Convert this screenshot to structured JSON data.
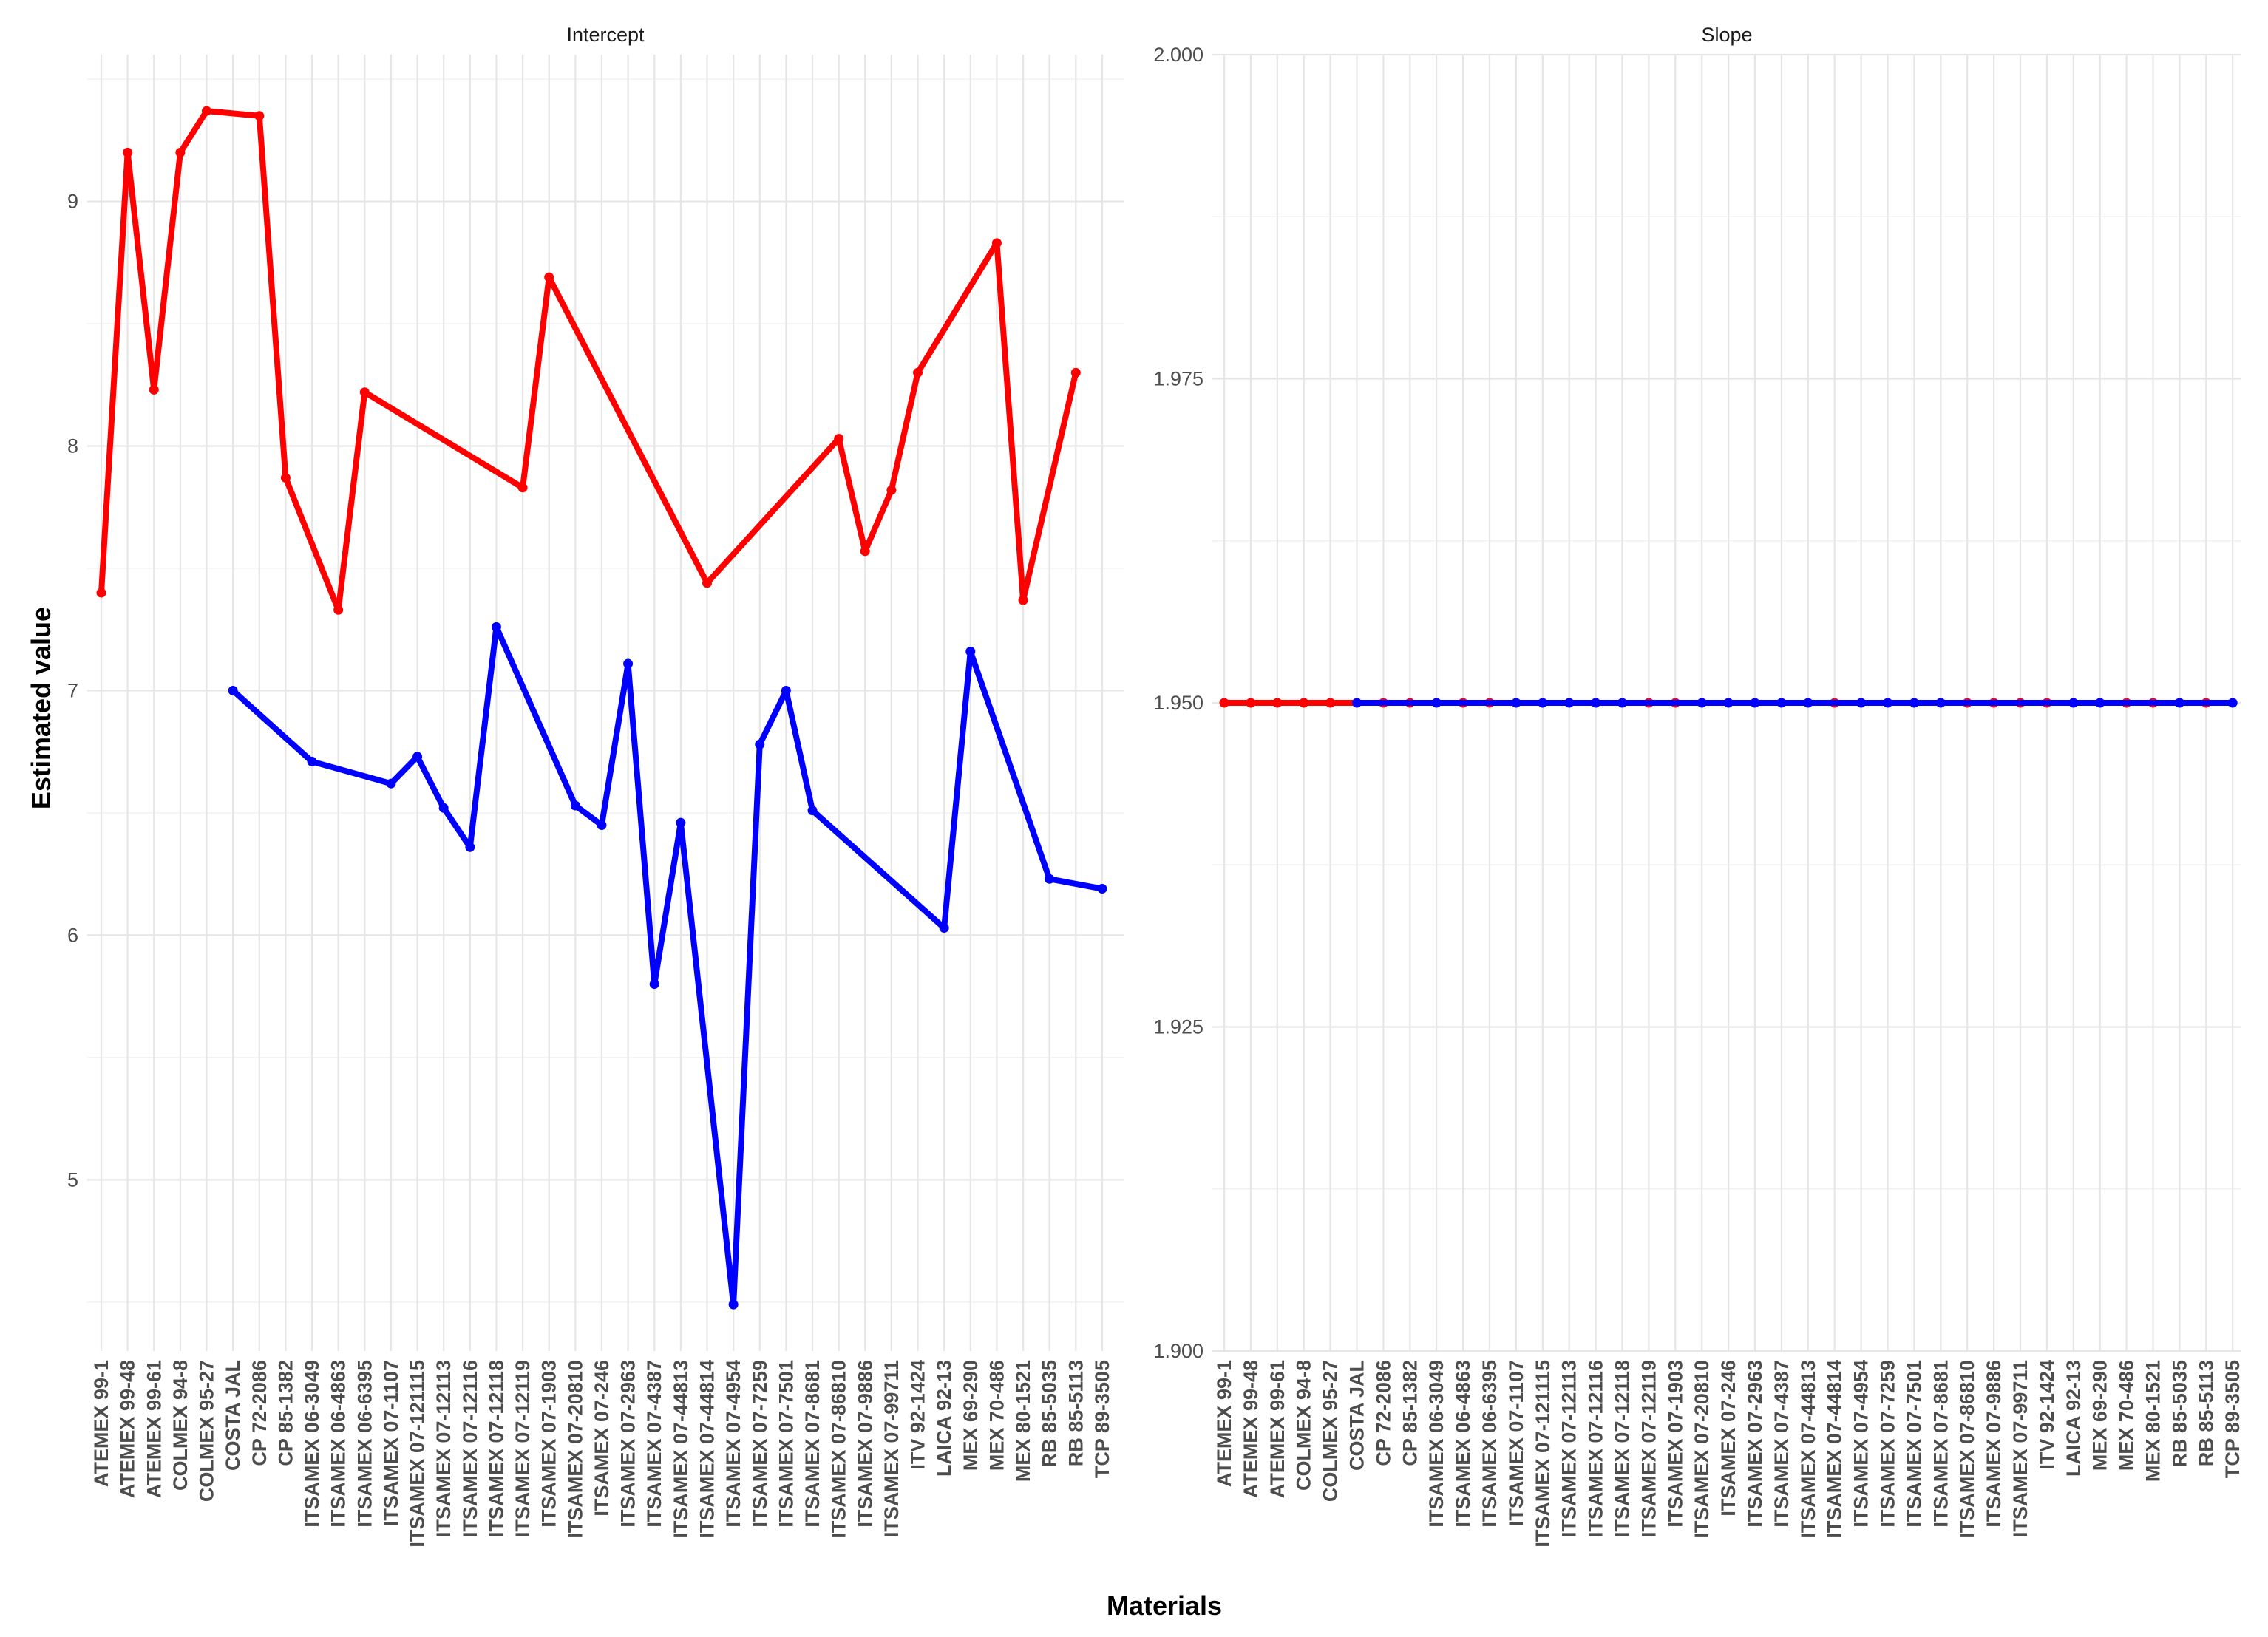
{
  "chart_data": {
    "type": "line",
    "xlabel": "Materials",
    "ylabel": "Estimated value",
    "grid": true,
    "legend": "none",
    "categories": [
      "ATEMEX 99-1",
      "ATEMEX 99-48",
      "ATEMEX 99-61",
      "COLMEX 94-8",
      "COLMEX 95-27",
      "COSTA JAL",
      "CP 72-2086",
      "CP 85-1382",
      "ITSAMEX 06-3049",
      "ITSAMEX 06-4863",
      "ITSAMEX 06-6395",
      "ITSAMEX 07-1107",
      "ITSAMEX 07-121115",
      "ITSAMEX 07-12113",
      "ITSAMEX 07-12116",
      "ITSAMEX 07-12118",
      "ITSAMEX 07-12119",
      "ITSAMEX 07-1903",
      "ITSAMEX 07-20810",
      "ITSAMEX 07-246",
      "ITSAMEX 07-2963",
      "ITSAMEX 07-4387",
      "ITSAMEX 07-44813",
      "ITSAMEX 07-44814",
      "ITSAMEX 07-4954",
      "ITSAMEX 07-7259",
      "ITSAMEX 07-7501",
      "ITSAMEX 07-8681",
      "ITSAMEX 07-86810",
      "ITSAMEX 07-9886",
      "ITSAMEX 07-99711",
      "ITV 92-1424",
      "LAICA 92-13",
      "MEX 69-290",
      "MEX 70-486",
      "MEX 80-1521",
      "RB 85-5035",
      "RB 85-5113",
      "TCP 89-3505"
    ],
    "panels": [
      {
        "title": "Intercept",
        "ylim": [
          4.3,
          9.6
        ],
        "yticks": [
          5,
          6,
          7,
          8,
          9
        ],
        "ytick_labels": [
          "5",
          "6",
          "7",
          "8",
          "9"
        ],
        "series": [
          {
            "color": "#ff0000",
            "values": [
              7.4,
              9.2,
              8.23,
              9.2,
              9.37,
              null,
              9.35,
              7.87,
              null,
              7.33,
              8.22,
              null,
              null,
              null,
              null,
              null,
              7.83,
              8.69,
              null,
              null,
              null,
              null,
              null,
              7.44,
              null,
              null,
              null,
              null,
              8.03,
              7.57,
              7.82,
              8.3,
              null,
              null,
              8.83,
              7.37,
              null,
              8.3,
              null
            ]
          },
          {
            "color": "#0000ff",
            "values": [
              null,
              null,
              null,
              null,
              null,
              7.0,
              null,
              null,
              6.71,
              null,
              null,
              6.62,
              6.73,
              6.52,
              6.36,
              7.26,
              null,
              null,
              6.53,
              6.45,
              7.11,
              5.8,
              6.46,
              null,
              4.49,
              6.78,
              7.0,
              6.51,
              null,
              null,
              null,
              null,
              6.03,
              7.16,
              null,
              null,
              6.23,
              null,
              6.19
            ]
          }
        ]
      },
      {
        "title": "Slope",
        "ylim": [
          1.9,
          2.0
        ],
        "yticks": [
          1.9,
          1.925,
          1.95,
          1.975,
          2.0
        ],
        "ytick_labels": [
          "1.900",
          "1.925",
          "1.950",
          "1.975",
          "2.000"
        ],
        "series": [
          {
            "color": "#ff0000",
            "values": [
              1.95,
              1.95,
              1.95,
              1.95,
              1.95,
              null,
              1.95,
              1.95,
              null,
              1.95,
              1.95,
              null,
              null,
              null,
              null,
              null,
              1.95,
              1.95,
              null,
              null,
              null,
              null,
              null,
              1.95,
              null,
              null,
              null,
              null,
              1.95,
              1.95,
              1.95,
              1.95,
              null,
              null,
              1.95,
              1.95,
              null,
              1.95,
              null
            ]
          },
          {
            "color": "#0000ff",
            "values": [
              null,
              null,
              null,
              null,
              null,
              1.95,
              null,
              null,
              1.95,
              null,
              null,
              1.95,
              1.95,
              1.95,
              1.95,
              1.95,
              null,
              null,
              1.95,
              1.95,
              1.95,
              1.95,
              1.95,
              null,
              1.95,
              1.95,
              1.95,
              1.95,
              null,
              null,
              null,
              null,
              1.95,
              1.95,
              null,
              null,
              1.95,
              null,
              1.95
            ]
          }
        ]
      }
    ]
  }
}
